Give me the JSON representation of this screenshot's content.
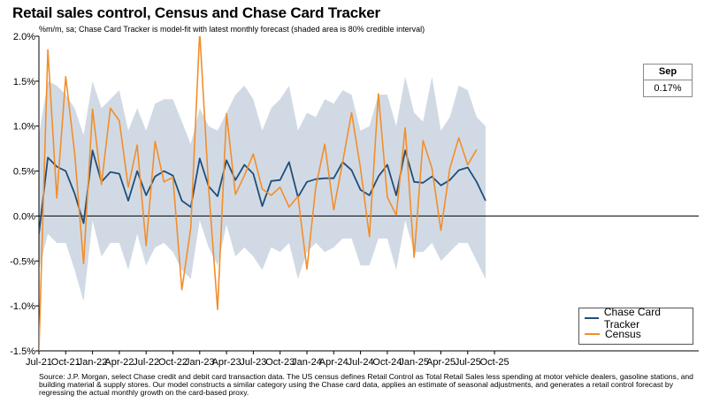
{
  "title": "Retail sales control, Census and Chase Card Tracker",
  "subtitle": "%m/m, sa; Chase Card Tracker is model-fit with latest monthly forecast (shaded area is 80% credible interval)",
  "note": "Source: J.P. Morgan, select Chase credit and debit card transaction data. The US census defines Retail Control as Total Retail Sales less spending at motor vehicle dealers, gasoline stations, and building material & supply stores. Our model constructs a similar category using the Chase card data, applies an estimate of seasonal adjustments, and generates a retail control forecast by regressing the actual monthly growth on the card-based proxy.",
  "callout": {
    "header": "Sep",
    "value": "0.17%"
  },
  "colors": {
    "chase": "#1f4e7a",
    "census": "#f28e2b",
    "band": "#d1dae4"
  },
  "chart_data": {
    "type": "line",
    "title": "Retail sales control, Census and Chase Card Tracker",
    "ylim": [
      -1.5,
      2.0
    ],
    "ytick_values": [
      -1.5,
      -1.0,
      -0.5,
      0.0,
      0.5,
      1.0,
      1.5,
      2.0
    ],
    "ytick_labels": [
      "-1.5%",
      "-1.0%",
      "-0.5%",
      "0.0%",
      "0.5%",
      "1.0%",
      "1.5%",
      "2.0%"
    ],
    "xtick_labels": [
      "Jul-21",
      "Oct-21",
      "Jan-22",
      "Apr-22",
      "Jul-22",
      "Oct-22",
      "Jan-23",
      "Apr-23",
      "Jul-23",
      "Oct-23",
      "Jan-24",
      "Apr-24",
      "Jul-24",
      "Oct-24",
      "Jan-25",
      "Apr-25",
      "Jul-25",
      "Oct-25"
    ],
    "start_month": "Jul-21",
    "n_months": 51,
    "legend": [
      "Chase Card Tracker",
      "Census"
    ],
    "series": [
      {
        "name": "Chase Card Tracker",
        "values": [
          -0.2,
          0.65,
          0.55,
          0.5,
          0.25,
          -0.08,
          0.73,
          0.38,
          0.49,
          0.47,
          0.17,
          0.5,
          0.23,
          0.44,
          0.5,
          0.45,
          0.17,
          0.1,
          0.64,
          0.33,
          0.22,
          0.62,
          0.4,
          0.57,
          0.47,
          0.11,
          0.39,
          0.4,
          0.6,
          0.21,
          0.38,
          0.41,
          0.42,
          0.42,
          0.6,
          0.51,
          0.29,
          0.23,
          0.44,
          0.57,
          0.23,
          0.73,
          0.38,
          0.37,
          0.44,
          0.34,
          0.4,
          0.51,
          0.54,
          0.38,
          0.17
        ]
      },
      {
        "name": "Census",
        "values": [
          -1.5,
          1.85,
          0.2,
          1.55,
          0.7,
          -0.53,
          1.19,
          0.35,
          1.2,
          1.06,
          0.32,
          0.79,
          -0.33,
          0.83,
          0.38,
          0.43,
          -0.82,
          -0.13,
          2.05,
          0.31,
          -1.04,
          1.14,
          0.24,
          0.45,
          0.69,
          0.3,
          0.23,
          0.32,
          0.1,
          0.22,
          -0.59,
          0.33,
          0.8,
          0.07,
          0.6,
          1.15,
          0.53,
          -0.23,
          1.36,
          0.21,
          0.01,
          0.98,
          -0.46,
          0.84,
          0.53,
          -0.16,
          0.53,
          0.87,
          0.57,
          0.74
        ]
      }
    ],
    "band": {
      "name": "80% credible interval",
      "upper": [
        0.9,
        1.5,
        1.45,
        1.35,
        1.2,
        0.9,
        1.5,
        1.2,
        1.3,
        1.4,
        0.95,
        1.2,
        0.95,
        1.25,
        1.3,
        1.3,
        1.05,
        0.8,
        1.2,
        1.0,
        0.95,
        1.15,
        1.35,
        1.45,
        1.3,
        0.95,
        1.2,
        1.3,
        1.45,
        0.95,
        1.15,
        1.1,
        1.3,
        1.25,
        1.4,
        1.35,
        0.95,
        1.0,
        1.35,
        1.35,
        1.0,
        1.55,
        1.15,
        1.05,
        1.55,
        0.95,
        1.1,
        1.45,
        1.4,
        1.1,
        1.0
      ],
      "lower": [
        -0.6,
        -0.2,
        -0.3,
        -0.3,
        -0.6,
        -0.95,
        -0.05,
        -0.45,
        -0.3,
        -0.3,
        -0.6,
        -0.2,
        -0.55,
        -0.35,
        -0.3,
        -0.4,
        -0.6,
        -0.7,
        -0.05,
        -0.35,
        -0.55,
        -0.1,
        -0.45,
        -0.35,
        -0.45,
        -0.6,
        -0.35,
        -0.4,
        -0.3,
        -0.7,
        -0.4,
        -0.3,
        -0.4,
        -0.35,
        -0.25,
        -0.25,
        -0.55,
        -0.55,
        -0.25,
        -0.25,
        -0.6,
        -0.05,
        -0.4,
        -0.4,
        -0.3,
        -0.5,
        -0.4,
        -0.3,
        -0.3,
        -0.5,
        -0.7
      ]
    }
  }
}
